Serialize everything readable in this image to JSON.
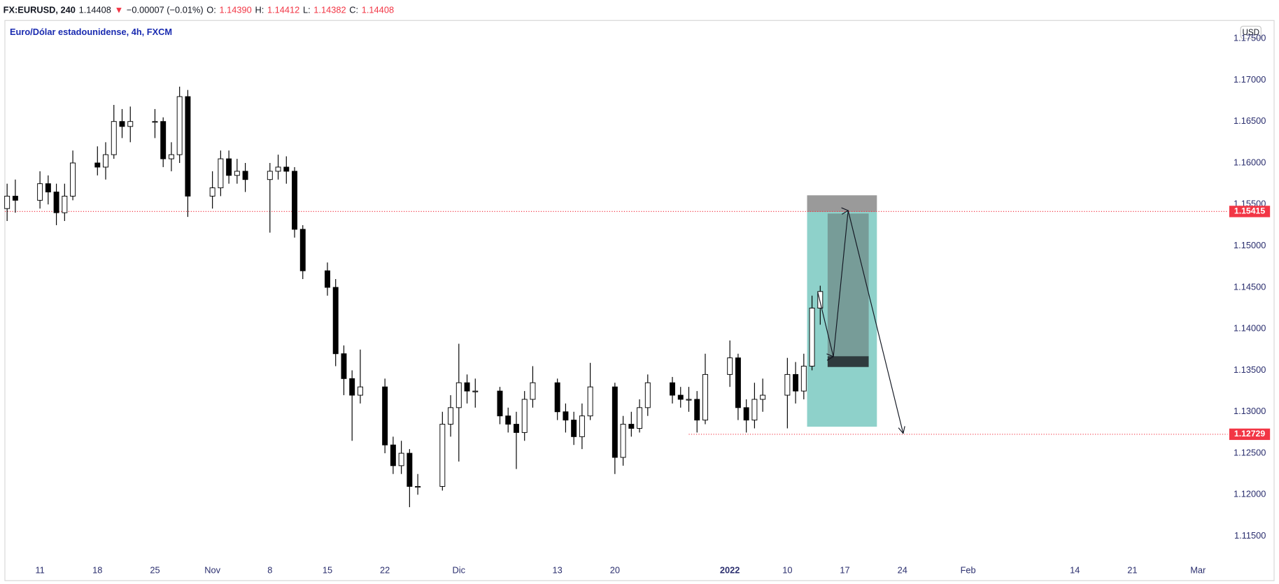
{
  "header": {
    "parts": [
      {
        "text": "FX:EURUSD, 240",
        "color": "#131722"
      },
      {
        "text": "1.14408",
        "color": "#131722"
      },
      {
        "text": "▼",
        "color": "#f23645"
      },
      {
        "text": "−0.00007 (−0.01%)",
        "color": "#131722"
      },
      {
        "text": "O:",
        "color": "#131722"
      },
      {
        "text": "1.14390",
        "color": "#f23645"
      },
      {
        "text": "H:",
        "color": "#131722"
      },
      {
        "text": "1.14412",
        "color": "#f23645"
      },
      {
        "text": "L:",
        "color": "#131722"
      },
      {
        "text": "1.14382",
        "color": "#f23645"
      },
      {
        "text": "C:",
        "color": "#131722"
      },
      {
        "text": "1.14408",
        "color": "#f23645"
      }
    ]
  },
  "chart_data": {
    "type": "candlestick",
    "title": "Euro/Dólar estadounidense, 4h, FXCM",
    "currency": "USD",
    "up_color": "#ffffff",
    "down_color": "#000000",
    "wick_color": "#000000",
    "x": [
      -4,
      -3,
      0,
      1,
      2,
      3,
      4,
      7,
      8,
      9,
      10,
      11,
      14,
      15,
      16,
      17,
      18,
      21,
      22,
      23,
      24,
      25,
      28,
      29,
      30,
      31,
      32,
      35,
      36,
      37,
      38,
      39,
      42,
      43,
      44,
      45,
      46,
      49,
      50,
      51,
      52,
      53,
      56,
      57,
      58,
      59,
      60,
      63,
      64,
      65,
      66,
      67,
      70,
      71,
      72,
      73,
      74,
      77,
      78,
      79,
      80,
      81,
      84,
      85,
      86,
      87,
      88,
      91,
      92,
      93,
      94,
      95
    ],
    "open": [
      1.1545,
      1.156,
      1.1555,
      1.1575,
      1.1565,
      1.154,
      1.156,
      1.16,
      1.1595,
      1.161,
      1.165,
      1.1644,
      1.165,
      1.165,
      1.1605,
      1.161,
      1.168,
      1.156,
      1.157,
      1.1605,
      1.1585,
      1.159,
      1.158,
      1.159,
      1.1595,
      1.159,
      1.152,
      1.147,
      1.145,
      1.137,
      1.134,
      1.132,
      1.133,
      1.126,
      1.1235,
      1.125,
      1.121,
      1.121,
      1.1285,
      1.1305,
      1.1335,
      1.1325,
      1.1325,
      1.1295,
      1.1285,
      1.1275,
      1.1315,
      1.1335,
      1.13,
      1.129,
      1.127,
      1.1295,
      1.133,
      1.1245,
      1.1285,
      1.128,
      1.1305,
      1.1335,
      1.132,
      1.1315,
      1.1315,
      1.129,
      1.1345,
      1.1365,
      1.1305,
      1.129,
      1.1315,
      1.132,
      1.1345,
      1.1325,
      1.1355,
      1.1425
    ],
    "high": [
      1.1575,
      1.158,
      1.159,
      1.1585,
      1.1575,
      1.1575,
      1.1615,
      1.162,
      1.1625,
      1.167,
      1.1665,
      1.1668,
      1.1665,
      1.1655,
      1.1625,
      1.1692,
      1.1688,
      1.159,
      1.1615,
      1.1615,
      1.1605,
      1.16,
      1.16,
      1.161,
      1.1608,
      1.1595,
      1.1525,
      1.148,
      1.146,
      1.138,
      1.135,
      1.1375,
      1.134,
      1.127,
      1.1265,
      1.1255,
      1.1225,
      1.13,
      1.132,
      1.1382,
      1.1345,
      1.134,
      1.133,
      1.1305,
      1.13,
      1.1325,
      1.1355,
      1.134,
      1.131,
      1.13,
      1.131,
      1.1359,
      1.1335,
      1.1295,
      1.13,
      1.1315,
      1.1345,
      1.1342,
      1.133,
      1.133,
      1.1325,
      1.137,
      1.1386,
      1.137,
      1.1315,
      1.1335,
      1.134,
      1.1365,
      1.136,
      1.137,
      1.144,
      1.1452
    ],
    "low": [
      1.153,
      1.154,
      1.1545,
      1.155,
      1.1525,
      1.153,
      1.1555,
      1.1585,
      1.158,
      1.1605,
      1.163,
      1.1625,
      1.163,
      1.1595,
      1.159,
      1.16,
      1.1535,
      1.1545,
      1.156,
      1.1575,
      1.1575,
      1.1565,
      1.1516,
      1.158,
      1.1575,
      1.151,
      1.146,
      1.144,
      1.1355,
      1.132,
      1.1265,
      1.131,
      1.125,
      1.1225,
      1.1225,
      1.1185,
      1.12,
      1.1205,
      1.127,
      1.124,
      1.131,
      1.1305,
      1.1285,
      1.1275,
      1.1231,
      1.1265,
      1.1305,
      1.129,
      1.1275,
      1.126,
      1.1255,
      1.129,
      1.1225,
      1.1235,
      1.127,
      1.1275,
      1.1295,
      1.131,
      1.1305,
      1.13,
      1.1275,
      1.1285,
      1.133,
      1.129,
      1.1275,
      1.128,
      1.13,
      1.128,
      1.131,
      1.1315,
      1.135,
      1.1405
    ],
    "close": [
      1.156,
      1.1555,
      1.1575,
      1.1565,
      1.154,
      1.156,
      1.16,
      1.1595,
      1.161,
      1.165,
      1.1644,
      1.165,
      1.165,
      1.1605,
      1.161,
      1.168,
      1.156,
      1.157,
      1.1605,
      1.1585,
      1.159,
      1.158,
      1.159,
      1.1595,
      1.159,
      1.152,
      1.147,
      1.145,
      1.137,
      1.134,
      1.132,
      1.133,
      1.126,
      1.1235,
      1.125,
      1.121,
      1.121,
      1.1285,
      1.1305,
      1.1335,
      1.1325,
      1.1325,
      1.1295,
      1.1285,
      1.1275,
      1.1315,
      1.1335,
      1.13,
      1.129,
      1.127,
      1.1295,
      1.133,
      1.1245,
      1.1285,
      1.128,
      1.1305,
      1.1335,
      1.132,
      1.1315,
      1.1315,
      1.129,
      1.1345,
      1.1365,
      1.1305,
      1.129,
      1.1315,
      1.132,
      1.1345,
      1.1325,
      1.1355,
      1.1425,
      1.1445
    ],
    "xlim": [
      -4.27,
      144.6
    ],
    "xticks": [
      {
        "value": 0,
        "label": "11"
      },
      {
        "value": 7,
        "label": "18"
      },
      {
        "value": 14,
        "label": "25"
      },
      {
        "value": 21,
        "label": "Nov"
      },
      {
        "value": 28,
        "label": "8"
      },
      {
        "value": 35,
        "label": "15"
      },
      {
        "value": 42,
        "label": "22"
      },
      {
        "value": 51,
        "label": "Dic"
      },
      {
        "value": 63,
        "label": "13"
      },
      {
        "value": 70,
        "label": "20"
      },
      {
        "value": 84,
        "label": "2022",
        "bold": true
      },
      {
        "value": 91,
        "label": "10"
      },
      {
        "value": 98,
        "label": "17"
      },
      {
        "value": 105,
        "label": "24"
      },
      {
        "value": 113,
        "label": "Feb"
      },
      {
        "value": 126,
        "label": "14"
      },
      {
        "value": 133,
        "label": "21"
      },
      {
        "value": 141,
        "label": "Mar"
      }
    ],
    "ylim": [
      1.112,
      1.17708
    ],
    "yticks": [
      {
        "value": 1.115,
        "label": "1.11500"
      },
      {
        "value": 1.12,
        "label": "1.12000"
      },
      {
        "value": 1.125,
        "label": "1.12500"
      },
      {
        "value": 1.13,
        "label": "1.13000"
      },
      {
        "value": 1.135,
        "label": "1.13500"
      },
      {
        "value": 1.14,
        "label": "1.14000"
      },
      {
        "value": 1.145,
        "label": "1.14500"
      },
      {
        "value": 1.15,
        "label": "1.15000"
      },
      {
        "value": 1.155,
        "label": "1.15500"
      },
      {
        "value": 1.16,
        "label": "1.16000"
      },
      {
        "value": 1.165,
        "label": "1.16500"
      },
      {
        "value": 1.17,
        "label": "1.17000"
      },
      {
        "value": 1.175,
        "label": "1.17500"
      }
    ],
    "hlines": [
      {
        "value": 1.15415,
        "color": "#f23645"
      },
      {
        "value": 1.12729,
        "color": "#f23645",
        "from": 79
      }
    ],
    "position": {
      "x": [
        93.4,
        101.9
      ],
      "entry": 1.1541,
      "stop": 1.1561,
      "target": 1.1282,
      "stop_color": "rgba(120,120,120,0.75)",
      "target_color": "rgba(38,166,154,0.52)"
    },
    "boxes": [
      {
        "x": [
          95.9,
          100.9
        ],
        "y": [
          1.1539,
          1.1367
        ],
        "color": "rgba(90,90,90,0.45)"
      },
      {
        "x": [
          95.9,
          100.9
        ],
        "y": [
          1.1367,
          1.1354
        ],
        "color": "#2f3b3e"
      }
    ],
    "path": {
      "x": [
        94.7,
        96.6,
        98.4,
        105.1
      ],
      "y": [
        1.14442,
        1.13665,
        1.15426,
        1.1274
      ],
      "color": "#131722"
    }
  }
}
